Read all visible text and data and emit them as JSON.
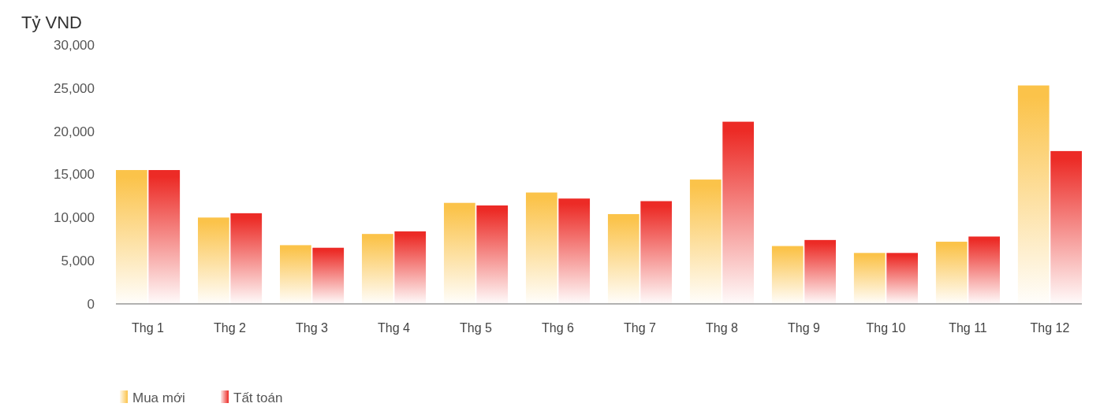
{
  "chart_data": {
    "type": "bar",
    "ylabel": "Tỷ VND",
    "categories": [
      "Thg 1",
      "Thg 2",
      "Thg 3",
      "Thg 4",
      "Thg 5",
      "Thg 6",
      "Thg 7",
      "Thg 8",
      "Thg 9",
      "Thg 10",
      "Thg 11",
      "Thg 12"
    ],
    "series": [
      {
        "name": "Mua mới",
        "color": "#fbc34a",
        "values": [
          15500,
          10000,
          6800,
          8100,
          11700,
          12900,
          10400,
          14400,
          6700,
          5900,
          7200,
          25300
        ]
      },
      {
        "name": "Tất toán",
        "color": "#ec2b26",
        "values": [
          15500,
          10500,
          6500,
          8400,
          11400,
          12200,
          11900,
          21100,
          7400,
          5900,
          7800,
          17700
        ]
      }
    ],
    "ylim": [
      0,
      30000
    ],
    "yticks": [
      {
        "value": 0,
        "label": "0"
      },
      {
        "value": 5000,
        "label": "5,000"
      },
      {
        "value": 10000,
        "label": "10,000"
      },
      {
        "value": 15000,
        "label": "15,000"
      },
      {
        "value": 20000,
        "label": "20,000"
      },
      {
        "value": 25000,
        "label": "25,000"
      },
      {
        "value": 30000,
        "label": "30,000"
      }
    ],
    "grid": false,
    "legend": "bottom left"
  }
}
